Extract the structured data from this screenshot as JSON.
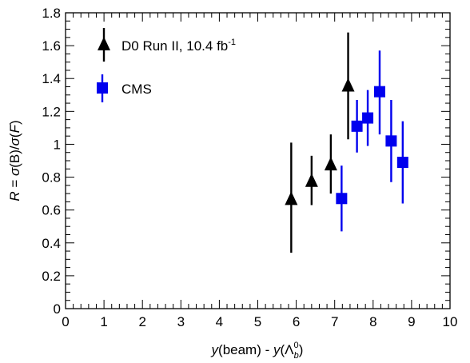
{
  "chart_data": {
    "type": "scatter",
    "xlim": [
      0,
      10
    ],
    "ylim": [
      0,
      1.8
    ],
    "x_ticks": [
      "0",
      "1",
      "2",
      "3",
      "4",
      "5",
      "6",
      "7",
      "8",
      "9",
      "10"
    ],
    "y_ticks": [
      "0",
      "0.2",
      "0.4",
      "0.6",
      "0.8",
      "1",
      "1.2",
      "1.4",
      "1.6",
      "1.8"
    ],
    "xlabel": {
      "y_var": "y",
      "beam": "(beam) - ",
      "y_var2": "y",
      "open": "(",
      "lambda": "Λ",
      "sup": "0",
      "sub": "b",
      "close": ")"
    },
    "ylabel": {
      "r": "R",
      "eq": " = ",
      "sigma1": "σ",
      "b": "(B)/",
      "sigma2": "σ",
      "f_open": "(",
      "f": "F",
      "f_close": ")"
    },
    "legend_position": "top-left",
    "series": [
      {
        "name": "D0 Run II, 10.4 fb",
        "name_sup": "-1",
        "marker": "triangle",
        "color": "#000000",
        "points": [
          {
            "x": 5.87,
            "y": 0.66,
            "lo": 0.34,
            "hi": 1.01
          },
          {
            "x": 6.4,
            "y": 0.77,
            "lo": 0.63,
            "hi": 0.93
          },
          {
            "x": 6.9,
            "y": 0.87,
            "lo": 0.7,
            "hi": 1.06
          },
          {
            "x": 7.35,
            "y": 1.35,
            "lo": 1.03,
            "hi": 1.68
          }
        ]
      },
      {
        "name": "CMS",
        "marker": "square",
        "color": "#0000ee",
        "points": [
          {
            "x": 7.18,
            "y": 0.67,
            "lo": 0.47,
            "hi": 0.87
          },
          {
            "x": 7.58,
            "y": 1.11,
            "lo": 0.95,
            "hi": 1.27
          },
          {
            "x": 7.86,
            "y": 1.16,
            "lo": 0.99,
            "hi": 1.33
          },
          {
            "x": 8.17,
            "y": 1.32,
            "lo": 1.06,
            "hi": 1.57
          },
          {
            "x": 8.47,
            "y": 1.02,
            "lo": 0.77,
            "hi": 1.27
          },
          {
            "x": 8.77,
            "y": 0.89,
            "lo": 0.64,
            "hi": 1.14
          }
        ]
      }
    ]
  }
}
